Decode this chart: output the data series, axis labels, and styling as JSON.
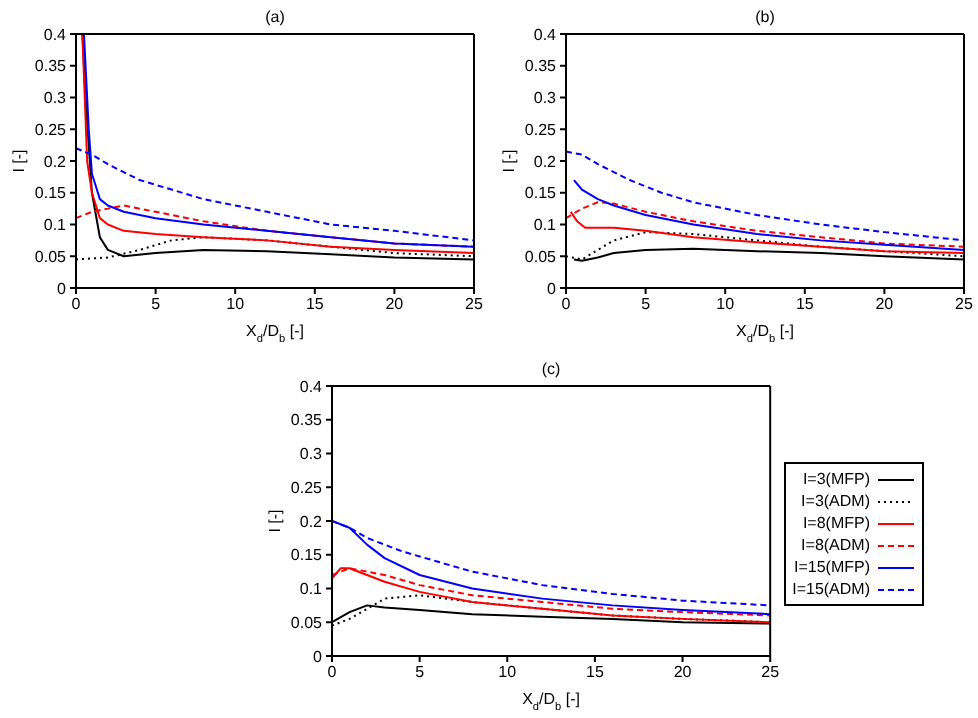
{
  "chart_data": [
    {
      "type": "line",
      "title": "(a)",
      "xlabel": "X$_{d}$/D$_{b}$ [-]",
      "ylabel": "I [-]",
      "xlim": [
        0,
        25
      ],
      "xticks": [
        0,
        5,
        10,
        15,
        20,
        25
      ],
      "ylim": [
        0,
        0.4
      ],
      "yticks": [
        0,
        0.05,
        0.1,
        0.15,
        0.2,
        0.25,
        0.3,
        0.35,
        0.4
      ],
      "grid": false,
      "legend": false,
      "marker": "none",
      "series": [
        {
          "color": "#000000",
          "line_style": "solid",
          "x": [
            0.4,
            0.6,
            1,
            1.5,
            2,
            3,
            5,
            8,
            12,
            16,
            20,
            25
          ],
          "values": [
            0.4,
            0.3,
            0.15,
            0.08,
            0.06,
            0.05,
            0.055,
            0.06,
            0.058,
            0.053,
            0.048,
            0.045
          ]
        },
        {
          "color": "#000000",
          "line_style": "dotted",
          "x": [
            0,
            2,
            4,
            6,
            8,
            12,
            16,
            20,
            25
          ],
          "values": [
            0.045,
            0.048,
            0.06,
            0.075,
            0.08,
            0.075,
            0.065,
            0.055,
            0.05
          ]
        },
        {
          "color": "#ff0000",
          "line_style": "solid",
          "x": [
            0.4,
            0.7,
            1,
            1.5,
            2,
            3,
            5,
            8,
            12,
            16,
            20,
            25
          ],
          "values": [
            0.4,
            0.2,
            0.15,
            0.11,
            0.1,
            0.09,
            0.085,
            0.08,
            0.075,
            0.065,
            0.06,
            0.055
          ]
        },
        {
          "color": "#ff0000",
          "line_style": "dashed",
          "x": [
            0,
            1,
            2,
            3,
            5,
            8,
            12,
            16,
            20,
            25
          ],
          "values": [
            0.11,
            0.12,
            0.125,
            0.13,
            0.12,
            0.105,
            0.09,
            0.08,
            0.07,
            0.065
          ]
        },
        {
          "color": "#0000ff",
          "line_style": "solid",
          "x": [
            0.5,
            0.8,
            1,
            1.5,
            2,
            3,
            5,
            8,
            12,
            16,
            20,
            25
          ],
          "values": [
            0.4,
            0.25,
            0.18,
            0.14,
            0.13,
            0.12,
            0.11,
            0.1,
            0.09,
            0.08,
            0.07,
            0.065
          ]
        },
        {
          "color": "#0000ff",
          "line_style": "dashed",
          "x": [
            0,
            1,
            2,
            4,
            6,
            8,
            12,
            16,
            20,
            25
          ],
          "values": [
            0.22,
            0.21,
            0.195,
            0.17,
            0.155,
            0.14,
            0.12,
            0.1,
            0.09,
            0.075
          ]
        }
      ]
    },
    {
      "type": "line",
      "title": "(b)",
      "xlabel": "X$_{d}$/D$_{b}$ [-]",
      "ylabel": "I [-]",
      "xlim": [
        0,
        25
      ],
      "xticks": [
        0,
        5,
        10,
        15,
        20,
        25
      ],
      "ylim": [
        0,
        0.4
      ],
      "yticks": [
        0,
        0.05,
        0.1,
        0.15,
        0.2,
        0.25,
        0.3,
        0.35,
        0.4
      ],
      "grid": false,
      "legend": false,
      "marker": "none",
      "series": [
        {
          "color": "#000000",
          "line_style": "solid",
          "x": [
            0.5,
            1,
            2,
            3,
            5,
            8,
            12,
            16,
            20,
            25
          ],
          "values": [
            0.045,
            0.043,
            0.048,
            0.055,
            0.06,
            0.062,
            0.058,
            0.055,
            0.05,
            0.045
          ]
        },
        {
          "color": "#000000",
          "line_style": "dotted",
          "x": [
            0,
            1,
            2,
            3,
            5,
            8,
            12,
            16,
            20,
            25
          ],
          "values": [
            0.05,
            0.045,
            0.06,
            0.075,
            0.088,
            0.085,
            0.075,
            0.065,
            0.058,
            0.05
          ]
        },
        {
          "color": "#ff0000",
          "line_style": "solid",
          "x": [
            0.3,
            0.7,
            1.2,
            3,
            5,
            8,
            12,
            16,
            20,
            25
          ],
          "values": [
            0.12,
            0.105,
            0.095,
            0.095,
            0.09,
            0.08,
            0.072,
            0.065,
            0.058,
            0.055
          ]
        },
        {
          "color": "#ff0000",
          "line_style": "dashed",
          "x": [
            0,
            1,
            2,
            3,
            5,
            8,
            12,
            16,
            20,
            25
          ],
          "values": [
            0.11,
            0.125,
            0.135,
            0.133,
            0.12,
            0.105,
            0.09,
            0.08,
            0.07,
            0.065
          ]
        },
        {
          "color": "#0000ff",
          "line_style": "solid",
          "x": [
            0.5,
            1,
            2,
            3,
            5,
            8,
            12,
            16,
            20,
            25
          ],
          "values": [
            0.17,
            0.155,
            0.14,
            0.13,
            0.115,
            0.1,
            0.085,
            0.075,
            0.068,
            0.06
          ]
        },
        {
          "color": "#0000ff",
          "line_style": "dashed",
          "x": [
            0,
            1,
            2,
            4,
            6,
            8,
            12,
            16,
            20,
            25
          ],
          "values": [
            0.215,
            0.21,
            0.195,
            0.17,
            0.15,
            0.135,
            0.115,
            0.1,
            0.088,
            0.075
          ]
        }
      ]
    },
    {
      "type": "line",
      "title": "(c)",
      "xlabel": "X$_{d}$/D$_{b}$ [-]",
      "ylabel": "I [-]",
      "xlim": [
        0,
        25
      ],
      "xticks": [
        0,
        5,
        10,
        15,
        20,
        25
      ],
      "ylim": [
        0,
        0.4
      ],
      "yticks": [
        0,
        0.05,
        0.1,
        0.15,
        0.2,
        0.25,
        0.3,
        0.35,
        0.4
      ],
      "grid": false,
      "legend": "right",
      "marker": "none",
      "series": [
        {
          "name": "I=3(MFP)",
          "color": "#000000",
          "line_style": "solid",
          "x": [
            0,
            1,
            2,
            3,
            5,
            8,
            12,
            16,
            20,
            25
          ],
          "values": [
            0.05,
            0.065,
            0.075,
            0.072,
            0.068,
            0.062,
            0.058,
            0.055,
            0.05,
            0.048
          ]
        },
        {
          "name": "I=3(ADM)",
          "color": "#000000",
          "line_style": "dotted",
          "x": [
            0,
            1,
            2,
            3,
            5,
            8,
            12,
            16,
            20,
            25
          ],
          "values": [
            0.045,
            0.055,
            0.07,
            0.085,
            0.09,
            0.08,
            0.07,
            0.06,
            0.055,
            0.05
          ]
        },
        {
          "name": "I=8(MFP)",
          "color": "#ff0000",
          "line_style": "solid",
          "x": [
            0,
            0.5,
            1,
            2,
            3,
            5,
            8,
            12,
            16,
            20,
            25
          ],
          "values": [
            0.115,
            0.13,
            0.13,
            0.12,
            0.11,
            0.095,
            0.08,
            0.07,
            0.06,
            0.055,
            0.05
          ]
        },
        {
          "name": "I=8(ADM)",
          "color": "#ff0000",
          "line_style": "dashed",
          "x": [
            0,
            1,
            2,
            3,
            5,
            8,
            12,
            16,
            20,
            25
          ],
          "values": [
            0.12,
            0.13,
            0.125,
            0.12,
            0.105,
            0.09,
            0.08,
            0.07,
            0.065,
            0.06
          ]
        },
        {
          "name": "I=15(MFP)",
          "color": "#0000ff",
          "line_style": "solid",
          "x": [
            0,
            1,
            2,
            3,
            5,
            8,
            12,
            16,
            20,
            25
          ],
          "values": [
            0.2,
            0.19,
            0.165,
            0.145,
            0.12,
            0.1,
            0.085,
            0.075,
            0.068,
            0.062
          ]
        },
        {
          "name": "I=15(ADM)",
          "color": "#0000ff",
          "line_style": "dashed",
          "x": [
            0,
            1,
            2,
            4,
            6,
            8,
            12,
            16,
            20,
            25
          ],
          "values": [
            0.2,
            0.19,
            0.175,
            0.155,
            0.14,
            0.125,
            0.105,
            0.092,
            0.082,
            0.075
          ]
        }
      ]
    }
  ]
}
